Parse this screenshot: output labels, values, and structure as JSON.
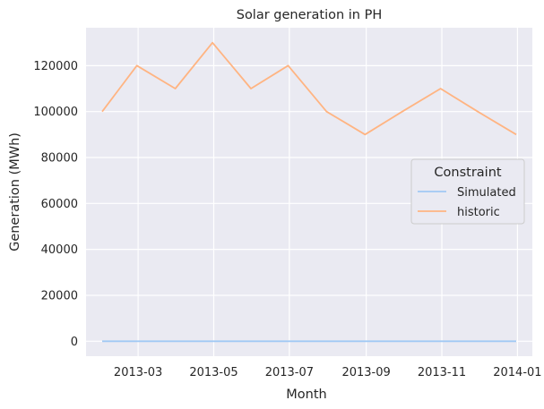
{
  "chart_data": {
    "type": "line",
    "title": "Solar generation in PH",
    "xlabel": "Month",
    "ylabel": "Generation (MWh)",
    "x_ticks": [
      "2013-03",
      "2013-05",
      "2013-07",
      "2013-09",
      "2013-11",
      "2014-01"
    ],
    "y_ticks": [
      "0",
      "20000",
      "40000",
      "60000",
      "80000",
      "100000",
      "120000"
    ],
    "xlim": [
      "2013-01-18",
      "2014-01-13"
    ],
    "ylim": [
      -6500,
      136500
    ],
    "grid": true,
    "legend": {
      "title": "Constraint",
      "placement": "center-right"
    },
    "x": [
      "2013-01-31",
      "2013-02-28",
      "2013-03-31",
      "2013-04-30",
      "2013-05-31",
      "2013-06-30",
      "2013-07-31",
      "2013-08-31",
      "2013-09-30",
      "2013-10-31",
      "2013-11-30",
      "2013-12-31"
    ],
    "series": [
      {
        "name": "Simulated",
        "color": "#a1c9f4",
        "values": [
          0,
          0,
          0,
          0,
          0,
          0,
          0,
          0,
          0,
          0,
          0,
          0
        ]
      },
      {
        "name": "historic",
        "color": "#ffb482",
        "values": [
          100000,
          120000,
          110000,
          130000,
          110000,
          120000,
          100000,
          90000,
          100000,
          110000,
          100000,
          90000
        ]
      }
    ]
  }
}
